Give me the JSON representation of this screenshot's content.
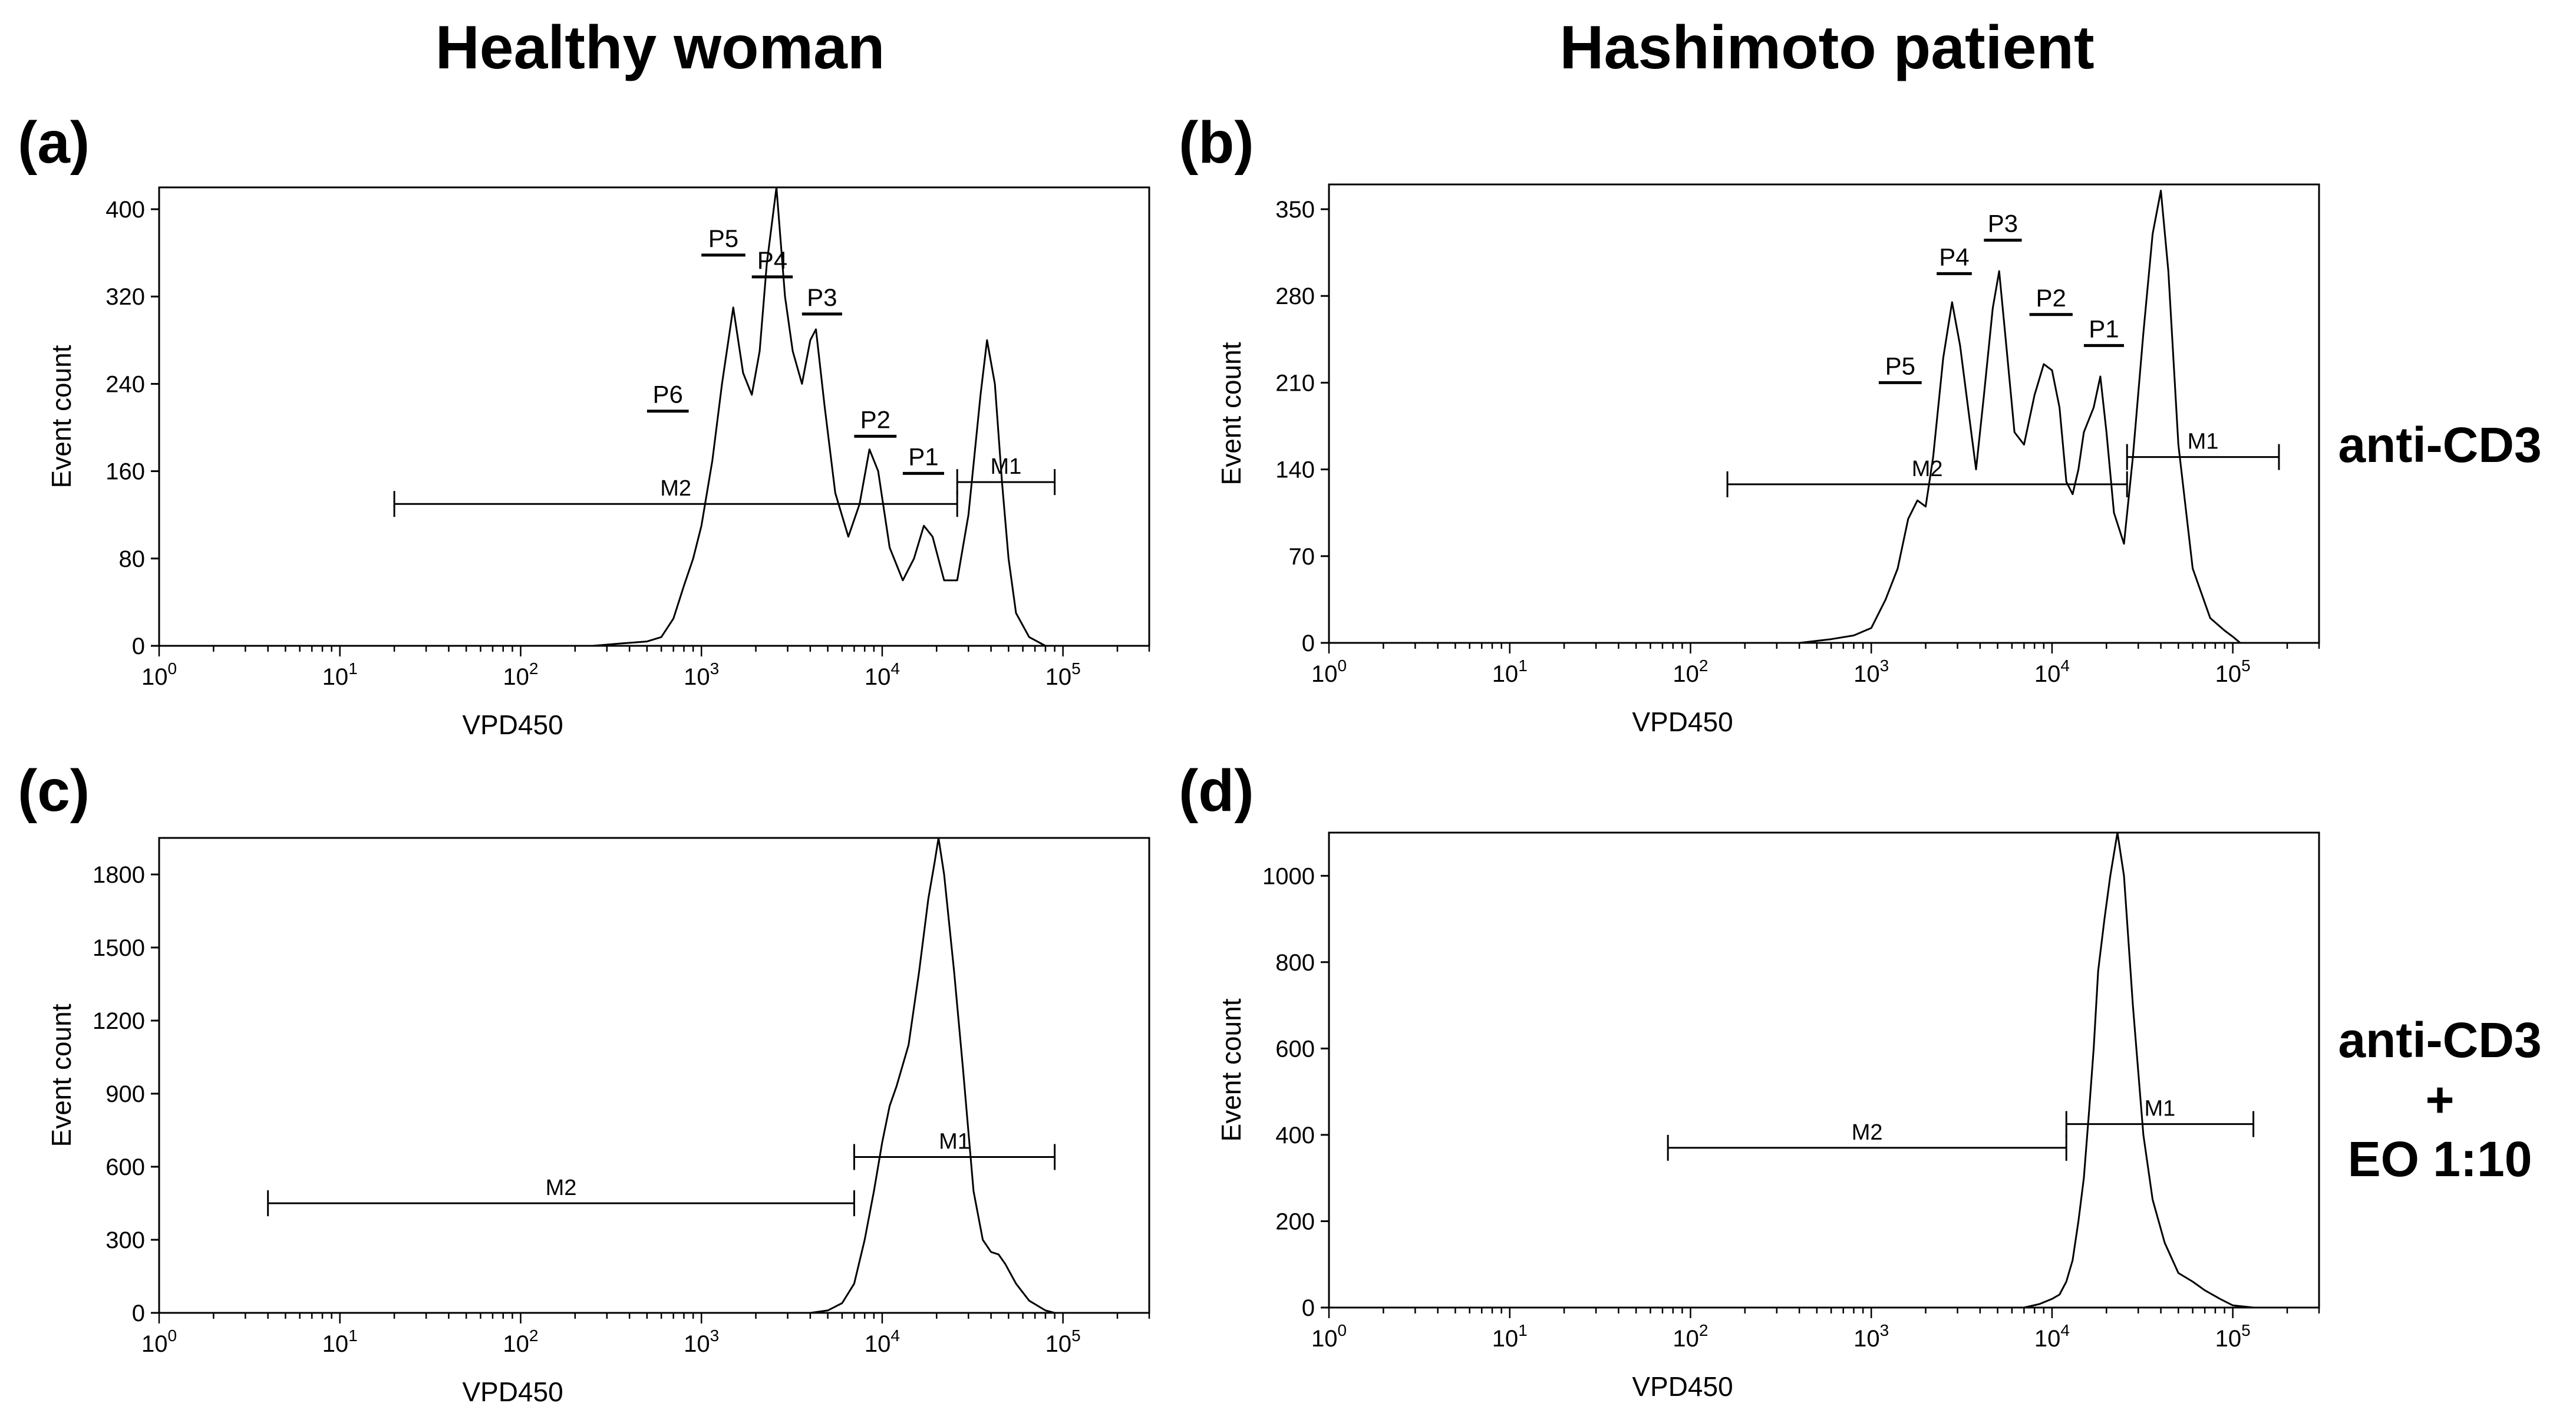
{
  "column_titles": {
    "left": "Healthy woman",
    "right": "Hashimoto patient"
  },
  "conditions": {
    "row1": "anti-CD3",
    "row2_line1": "anti-CD3",
    "row2_line2": "+",
    "row2_line3": "EO 1:10"
  },
  "chart_data": [
    {
      "id": "a",
      "panel_label": "(a)",
      "type": "area",
      "title": "Healthy woman — anti-CD3",
      "xlabel": "VPD450",
      "ylabel": "Event count",
      "xscale": "log",
      "xlim": [
        1,
        300000
      ],
      "ylim": [
        0,
        420
      ],
      "yticks": [
        0,
        80,
        160,
        240,
        320,
        400
      ],
      "xtick_exponents": [
        0,
        1,
        2,
        3,
        4,
        5
      ],
      "curve": [
        [
          250,
          0
        ],
        [
          350,
          2
        ],
        [
          500,
          4
        ],
        [
          600,
          8
        ],
        [
          700,
          25
        ],
        [
          800,
          55
        ],
        [
          900,
          80
        ],
        [
          1000,
          110
        ],
        [
          1150,
          170
        ],
        [
          1300,
          240
        ],
        [
          1500,
          310
        ],
        [
          1700,
          250
        ],
        [
          1900,
          230
        ],
        [
          2100,
          270
        ],
        [
          2300,
          350
        ],
        [
          2600,
          420
        ],
        [
          2900,
          320
        ],
        [
          3200,
          270
        ],
        [
          3600,
          240
        ],
        [
          4000,
          280
        ],
        [
          4300,
          290
        ],
        [
          4800,
          220
        ],
        [
          5500,
          140
        ],
        [
          6500,
          100
        ],
        [
          7500,
          130
        ],
        [
          8500,
          180
        ],
        [
          9500,
          160
        ],
        [
          11000,
          90
        ],
        [
          13000,
          60
        ],
        [
          15000,
          80
        ],
        [
          17000,
          110
        ],
        [
          19000,
          100
        ],
        [
          22000,
          60
        ],
        [
          26000,
          60
        ],
        [
          30000,
          120
        ],
        [
          35000,
          230
        ],
        [
          38000,
          280
        ],
        [
          42000,
          240
        ],
        [
          46000,
          150
        ],
        [
          50000,
          80
        ],
        [
          55000,
          30
        ],
        [
          65000,
          8
        ],
        [
          80000,
          0
        ]
      ],
      "gates": [
        {
          "name": "M2",
          "from": 20,
          "to": 26000,
          "y": 130
        },
        {
          "name": "M1",
          "from": 26000,
          "to": 90000,
          "y": 150
        }
      ],
      "peaks": [
        {
          "name": "P6",
          "from": 500,
          "to": 850,
          "y": 215
        },
        {
          "name": "P5",
          "from": 1000,
          "to": 1750,
          "y": 358
        },
        {
          "name": "P4",
          "from": 1900,
          "to": 3200,
          "y": 338
        },
        {
          "name": "P3",
          "from": 3600,
          "to": 6000,
          "y": 304
        },
        {
          "name": "P2",
          "from": 7000,
          "to": 12000,
          "y": 192
        },
        {
          "name": "P1",
          "from": 13000,
          "to": 22000,
          "y": 158
        }
      ]
    },
    {
      "id": "b",
      "panel_label": "(b)",
      "type": "area",
      "title": "Hashimoto patient — anti-CD3",
      "xlabel": "VPD450",
      "ylabel": "Event count",
      "xscale": "log",
      "xlim": [
        1,
        300000
      ],
      "ylim": [
        0,
        370
      ],
      "yticks": [
        0,
        70,
        140,
        210,
        280,
        350
      ],
      "xtick_exponents": [
        0,
        1,
        2,
        3,
        4,
        5
      ],
      "curve": [
        [
          400,
          0
        ],
        [
          600,
          3
        ],
        [
          800,
          6
        ],
        [
          1000,
          12
        ],
        [
          1200,
          35
        ],
        [
          1400,
          60
        ],
        [
          1600,
          100
        ],
        [
          1800,
          115
        ],
        [
          2000,
          110
        ],
        [
          2200,
          150
        ],
        [
          2500,
          230
        ],
        [
          2800,
          275
        ],
        [
          3100,
          240
        ],
        [
          3500,
          180
        ],
        [
          3800,
          140
        ],
        [
          4200,
          200
        ],
        [
          4700,
          270
        ],
        [
          5100,
          300
        ],
        [
          5500,
          250
        ],
        [
          6200,
          170
        ],
        [
          7000,
          160
        ],
        [
          8000,
          200
        ],
        [
          9000,
          225
        ],
        [
          10000,
          220
        ],
        [
          11000,
          190
        ],
        [
          12000,
          130
        ],
        [
          13000,
          120
        ],
        [
          14000,
          140
        ],
        [
          15000,
          170
        ],
        [
          17000,
          190
        ],
        [
          18500,
          215
        ],
        [
          20000,
          170
        ],
        [
          22000,
          105
        ],
        [
          25000,
          80
        ],
        [
          28000,
          150
        ],
        [
          32000,
          250
        ],
        [
          36000,
          330
        ],
        [
          40000,
          365
        ],
        [
          44000,
          300
        ],
        [
          50000,
          160
        ],
        [
          60000,
          60
        ],
        [
          75000,
          20
        ],
        [
          90000,
          10
        ],
        [
          100000,
          5
        ],
        [
          110000,
          0
        ]
      ],
      "gates": [
        {
          "name": "M2",
          "from": 160,
          "to": 26000,
          "y": 128
        },
        {
          "name": "M1",
          "from": 26000,
          "to": 180000,
          "y": 150
        }
      ],
      "peaks": [
        {
          "name": "P5",
          "from": 1100,
          "to": 1900,
          "y": 210
        },
        {
          "name": "P4",
          "from": 2300,
          "to": 3600,
          "y": 298
        },
        {
          "name": "P3",
          "from": 4200,
          "to": 6800,
          "y": 325
        },
        {
          "name": "P2",
          "from": 7500,
          "to": 13000,
          "y": 265
        },
        {
          "name": "P1",
          "from": 15000,
          "to": 25000,
          "y": 240
        }
      ]
    },
    {
      "id": "c",
      "panel_label": "(c)",
      "type": "area",
      "title": "Healthy woman — anti-CD3 + EO 1:10",
      "xlabel": "VPD450",
      "ylabel": "Event count",
      "xscale": "log",
      "xlim": [
        1,
        300000
      ],
      "ylim": [
        0,
        1950
      ],
      "yticks": [
        0,
        300,
        600,
        900,
        1200,
        1500,
        1800
      ],
      "xtick_exponents": [
        0,
        1,
        2,
        3,
        4,
        5
      ],
      "curve": [
        [
          4000,
          0
        ],
        [
          5000,
          10
        ],
        [
          6000,
          40
        ],
        [
          7000,
          120
        ],
        [
          8000,
          300
        ],
        [
          9000,
          500
        ],
        [
          10000,
          700
        ],
        [
          11000,
          850
        ],
        [
          12000,
          930
        ],
        [
          14000,
          1100
        ],
        [
          16000,
          1400
        ],
        [
          18000,
          1700
        ],
        [
          19500,
          1850
        ],
        [
          20500,
          1950
        ],
        [
          22000,
          1800
        ],
        [
          25000,
          1400
        ],
        [
          28000,
          1000
        ],
        [
          32000,
          500
        ],
        [
          36000,
          300
        ],
        [
          40000,
          250
        ],
        [
          44000,
          240
        ],
        [
          48000,
          200
        ],
        [
          55000,
          120
        ],
        [
          65000,
          50
        ],
        [
          80000,
          10
        ],
        [
          90000,
          0
        ]
      ],
      "gates": [
        {
          "name": "M2",
          "from": 4,
          "to": 7000,
          "y": 450
        },
        {
          "name": "M1",
          "from": 7000,
          "to": 90000,
          "y": 640
        }
      ],
      "peaks": []
    },
    {
      "id": "d",
      "panel_label": "(d)",
      "type": "area",
      "title": "Hashimoto patient — anti-CD3 + EO 1:10",
      "xlabel": "VPD450",
      "ylabel": "Event count",
      "xscale": "log",
      "xlim": [
        1,
        300000
      ],
      "ylim": [
        0,
        1100
      ],
      "yticks": [
        0,
        200,
        400,
        600,
        800,
        1000
      ],
      "xtick_exponents": [
        0,
        1,
        2,
        3,
        4,
        5
      ],
      "curve": [
        [
          7000,
          0
        ],
        [
          8500,
          8
        ],
        [
          10000,
          20
        ],
        [
          11000,
          30
        ],
        [
          12000,
          60
        ],
        [
          13000,
          110
        ],
        [
          14000,
          200
        ],
        [
          15000,
          300
        ],
        [
          16000,
          450
        ],
        [
          17000,
          600
        ],
        [
          18000,
          780
        ],
        [
          19500,
          900
        ],
        [
          21000,
          1000
        ],
        [
          23000,
          1100
        ],
        [
          25000,
          1000
        ],
        [
          28000,
          700
        ],
        [
          32000,
          400
        ],
        [
          36000,
          250
        ],
        [
          42000,
          150
        ],
        [
          50000,
          80
        ],
        [
          60000,
          60
        ],
        [
          70000,
          40
        ],
        [
          85000,
          20
        ],
        [
          100000,
          5
        ],
        [
          130000,
          0
        ]
      ],
      "gates": [
        {
          "name": "M2",
          "from": 75,
          "to": 12000,
          "y": 370
        },
        {
          "name": "M1",
          "from": 12000,
          "to": 130000,
          "y": 425
        }
      ],
      "peaks": []
    }
  ]
}
